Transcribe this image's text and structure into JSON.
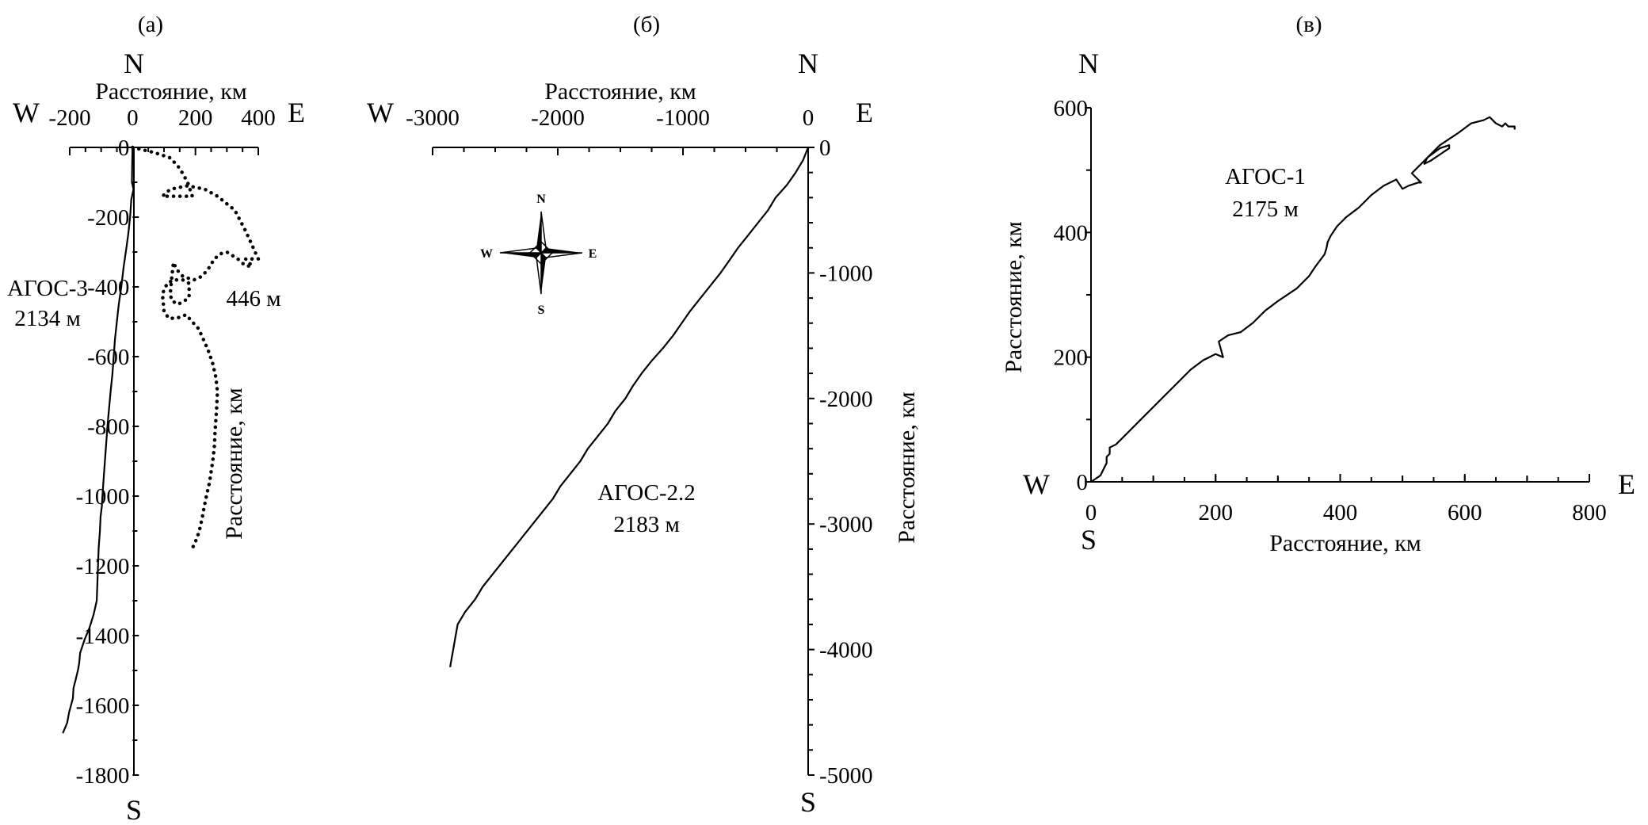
{
  "chart_data": [
    {
      "type": "line",
      "panel_label": "(а)",
      "compass": {
        "north": "N",
        "south": "S",
        "west": "W",
        "east": "E"
      },
      "xlabel": "Расстояние, км",
      "ylabel": "Расстояние, км",
      "xlim": [
        -200,
        400
      ],
      "ylim": [
        -1800,
        0
      ],
      "x_ticks": [
        -200,
        0,
        200,
        400
      ],
      "x_tick_labels": [
        "-200",
        "0",
        "200",
        "400"
      ],
      "y_ticks": [
        0,
        -200,
        -400,
        -600,
        -800,
        -1000,
        -1200,
        -1400,
        -1600,
        -1800
      ],
      "y_tick_labels": [
        "0",
        "-200",
        "-400",
        "-600",
        "-800",
        "-1000",
        "-1200",
        "-1400",
        "-1600",
        "-1800"
      ],
      "series": [
        {
          "name": "АГОС-3",
          "depth_label": "2134 м",
          "style": "solid",
          "x": [
            0,
            -1,
            -2,
            3,
            -4,
            -8,
            -14,
            -20,
            -28,
            -36,
            -44,
            -50,
            -56,
            -60,
            -64,
            -70,
            -76,
            -80,
            -84,
            -88,
            -92,
            -96,
            -98,
            -102,
            -104,
            -108,
            -110,
            -112,
            -114,
            -124,
            -138,
            -152,
            -167,
            -170,
            -174,
            -182,
            -188,
            -190,
            -196,
            -202,
            -208,
            -222
          ],
          "y": [
            0,
            -40,
            -100,
            -120,
            -150,
            -200,
            -250,
            -290,
            -340,
            -400,
            -450,
            -500,
            -550,
            -600,
            -650,
            -700,
            -760,
            -800,
            -850,
            -900,
            -950,
            -1000,
            -1030,
            -1060,
            -1100,
            -1150,
            -1200,
            -1250,
            -1300,
            -1340,
            -1380,
            -1410,
            -1450,
            -1480,
            -1500,
            -1530,
            -1550,
            -1580,
            -1600,
            -1620,
            -1650,
            -1680
          ]
        },
        {
          "name": "",
          "depth_label": "446 м",
          "style": "dotted",
          "x": [
            0,
            70,
            120,
            150,
            175,
            190,
            140,
            95,
            120,
            175,
            230,
            270,
            325,
            360,
            380,
            390,
            400,
            360,
            380,
            360,
            335,
            300,
            280,
            260,
            240,
            220,
            195,
            160,
            140,
            130,
            125,
            120,
            125,
            145,
            165,
            180,
            180,
            160,
            130,
            110,
            95,
            100,
            115,
            140,
            170,
            210,
            240,
            255,
            265,
            270,
            268,
            265,
            262,
            260,
            255,
            250,
            245,
            240,
            235,
            228,
            222,
            215,
            205,
            195,
            185
          ],
          "y": [
            0,
            -15,
            -30,
            -60,
            -100,
            -140,
            -140,
            -140,
            -120,
            -110,
            -120,
            -140,
            -180,
            -240,
            -280,
            -300,
            -320,
            -320,
            -340,
            -340,
            -320,
            -300,
            -305,
            -320,
            -350,
            -370,
            -380,
            -370,
            -350,
            -330,
            -370,
            -420,
            -440,
            -450,
            -440,
            -430,
            -390,
            -380,
            -380,
            -390,
            -420,
            -470,
            -490,
            -490,
            -480,
            -520,
            -580,
            -620,
            -660,
            -700,
            -740,
            -780,
            -820,
            -860,
            -900,
            -930,
            -960,
            -980,
            -1000,
            -1030,
            -1060,
            -1090,
            -1120,
            -1140,
            -1160
          ]
        }
      ]
    },
    {
      "type": "line",
      "panel_label": "(б)",
      "compass": {
        "north": "N",
        "south": "S",
        "west": "W",
        "east": "E"
      },
      "compass_rose": {
        "north": "N",
        "south": "S",
        "west": "W",
        "east": "E"
      },
      "xlabel": "Расстояние, км",
      "ylabel": "Расстояние, км",
      "xlim": [
        -3000,
        0
      ],
      "ylim": [
        -5000,
        0
      ],
      "x_ticks": [
        -3000,
        -2000,
        -1000,
        0
      ],
      "x_tick_labels": [
        "-3000",
        "-2000",
        "-1000",
        "0"
      ],
      "y_ticks": [
        0,
        -1000,
        -2000,
        -3000,
        -4000,
        -5000
      ],
      "y_tick_labels": [
        "0",
        "-1000",
        "-2000",
        "-3000",
        "-4000",
        "-5000"
      ],
      "series": [
        {
          "name": "АГОС-2.2",
          "depth_label": "2183 м",
          "style": "solid",
          "x": [
            0,
            -40,
            -100,
            -170,
            -260,
            -320,
            -400,
            -480,
            -560,
            -630,
            -700,
            -780,
            -860,
            -940,
            -1010,
            -1080,
            -1160,
            -1250,
            -1330,
            -1400,
            -1460,
            -1540,
            -1600,
            -1680,
            -1760,
            -1820,
            -1900,
            -1980,
            -2040,
            -2120,
            -2200,
            -2280,
            -2360,
            -2440,
            -2520,
            -2600,
            -2660,
            -2740,
            -2800,
            -2860
          ],
          "y": [
            0,
            -100,
            -200,
            -300,
            -400,
            -500,
            -600,
            -700,
            -800,
            -900,
            -1000,
            -1100,
            -1200,
            -1300,
            -1400,
            -1500,
            -1600,
            -1700,
            -1800,
            -1900,
            -2000,
            -2100,
            -2200,
            -2300,
            -2400,
            -2500,
            -2600,
            -2700,
            -2800,
            -2900,
            -3000,
            -3100,
            -3200,
            -3300,
            -3400,
            -3500,
            -3600,
            -3700,
            -3800,
            -4140
          ]
        }
      ]
    },
    {
      "type": "line",
      "panel_label": "(в)",
      "compass": {
        "north": "N",
        "south": "S",
        "west": "W",
        "east": "E"
      },
      "xlabel": "Расстояние, км",
      "ylabel": "Расстояние, км",
      "xlim": [
        0,
        800
      ],
      "ylim": [
        0,
        600
      ],
      "x_ticks": [
        0,
        200,
        400,
        600,
        800
      ],
      "x_tick_labels": [
        "0",
        "200",
        "400",
        "600",
        "800"
      ],
      "y_ticks": [
        0,
        200,
        400,
        600
      ],
      "y_tick_labels": [
        "0",
        "200",
        "400",
        "600"
      ],
      "series": [
        {
          "name": "АГОС-1",
          "depth_label": "2175 м",
          "style": "solid",
          "x": [
            0,
            15,
            20,
            25,
            25,
            30,
            30,
            40,
            60,
            80,
            100,
            120,
            140,
            160,
            180,
            200,
            212,
            205,
            220,
            240,
            260,
            280,
            300,
            330,
            350,
            360,
            375,
            378,
            380,
            385,
            395,
            410,
            430,
            450,
            470,
            490,
            500,
            510,
            525,
            530,
            515,
            540,
            560,
            575,
            575,
            560,
            545,
            535,
            540,
            560,
            590,
            610,
            630,
            640,
            650,
            660,
            665,
            670,
            680,
            680
          ],
          "y": [
            0,
            10,
            20,
            30,
            40,
            45,
            55,
            60,
            80,
            100,
            120,
            140,
            160,
            180,
            195,
            205,
            200,
            225,
            235,
            240,
            255,
            275,
            290,
            310,
            330,
            345,
            365,
            375,
            385,
            395,
            410,
            425,
            440,
            460,
            475,
            485,
            470,
            475,
            480,
            480,
            495,
            520,
            535,
            540,
            535,
            525,
            515,
            510,
            520,
            540,
            560,
            575,
            580,
            585,
            575,
            570,
            575,
            570,
            570,
            565
          ]
        }
      ]
    }
  ]
}
